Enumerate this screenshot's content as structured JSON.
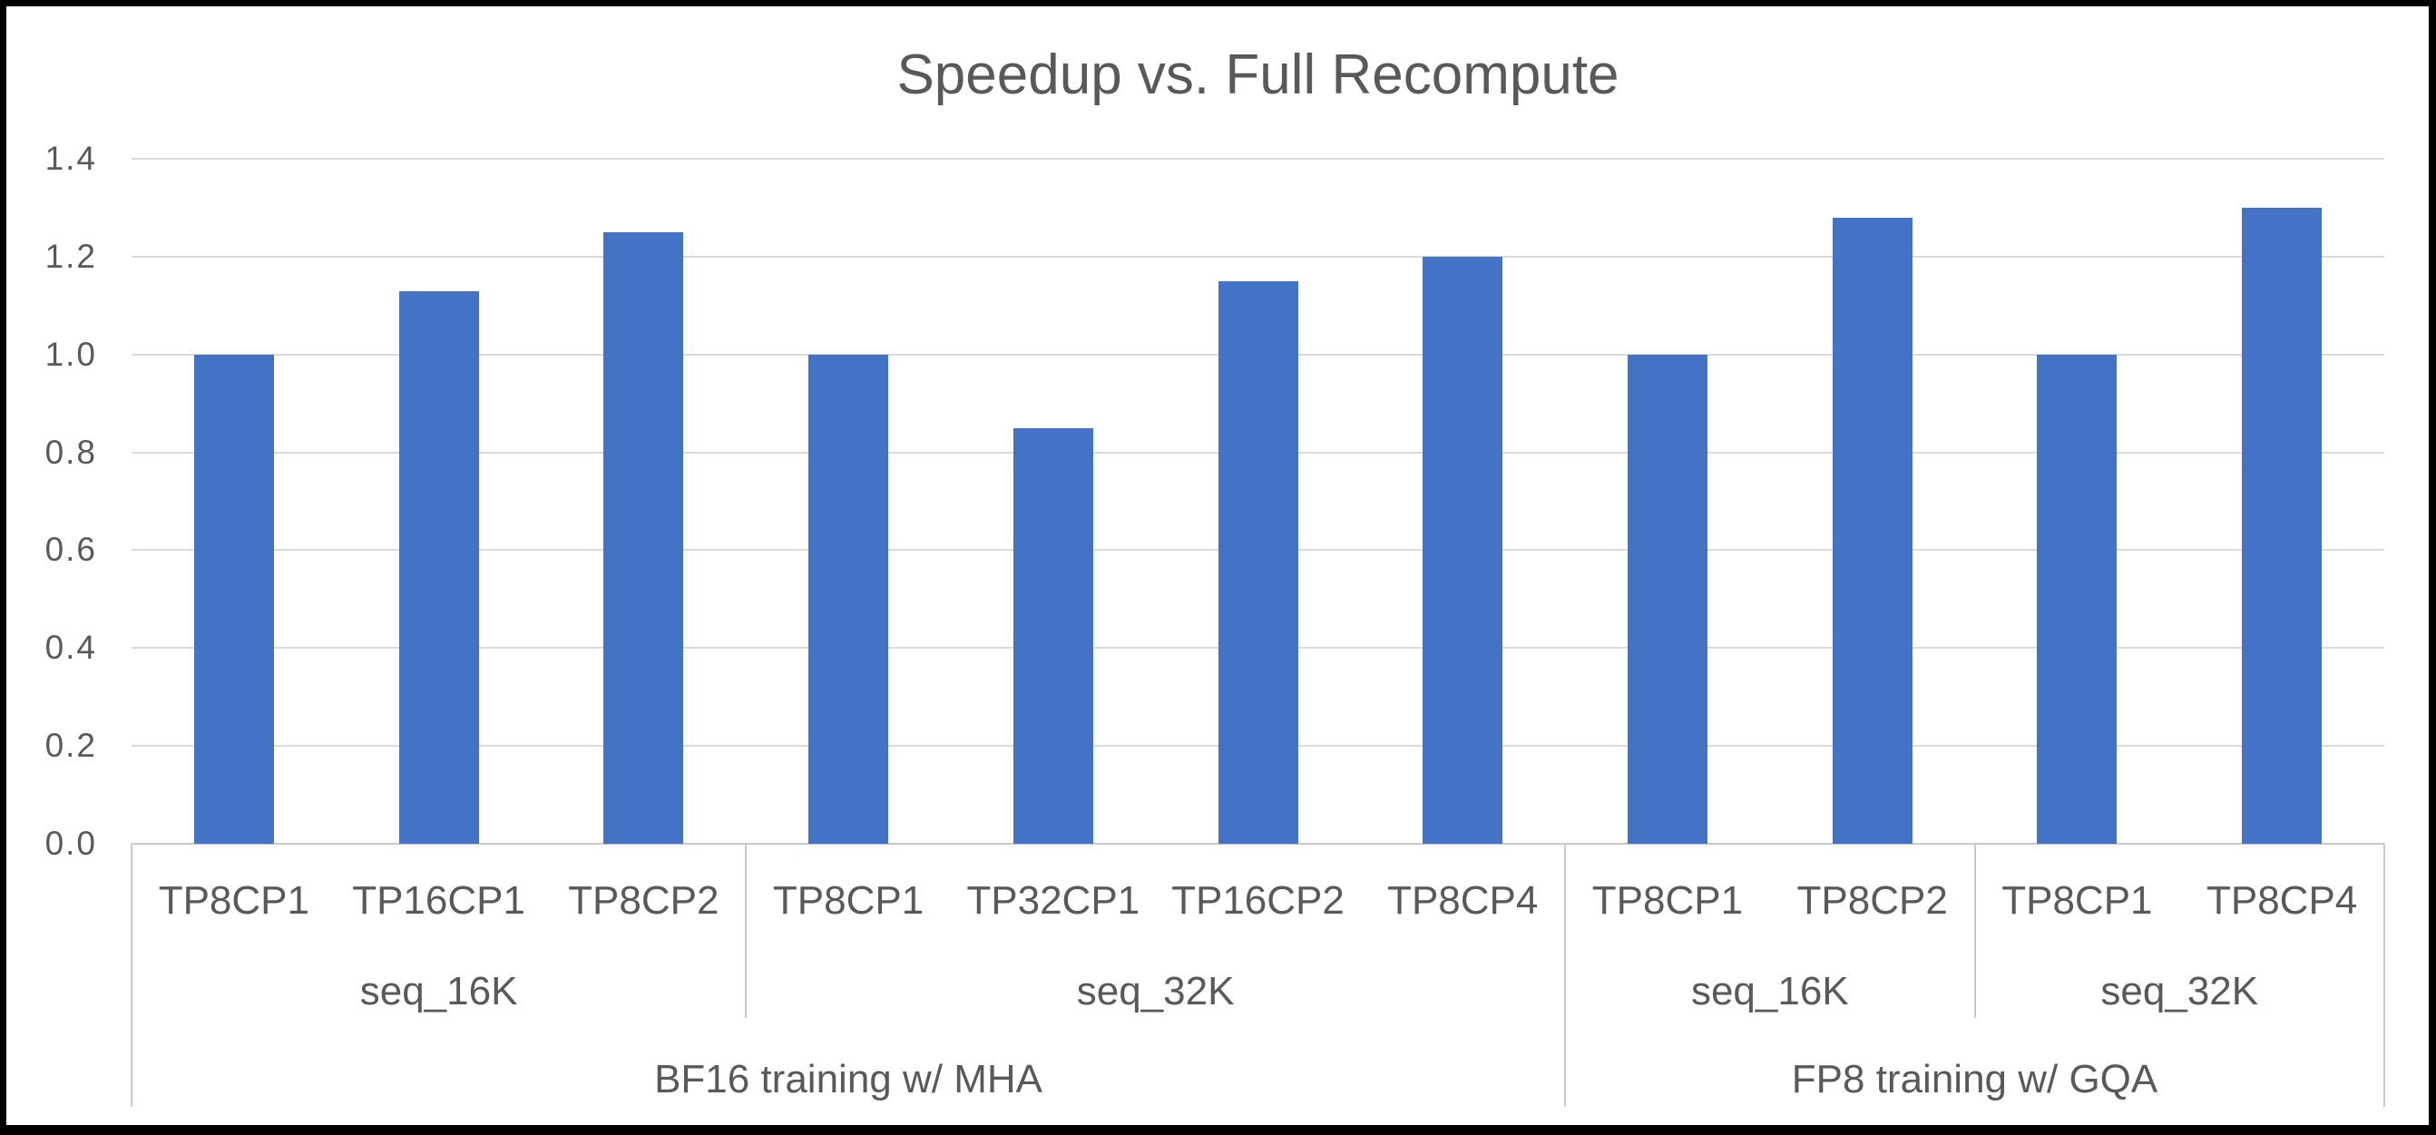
{
  "colors": {
    "bar": "#4472C4",
    "grid": "#D9D9D9",
    "axis": "#C9C9C9",
    "text": "#595959",
    "frame": "#000000"
  },
  "chart_data": {
    "type": "bar",
    "title": "Speedup vs. Full Recompute",
    "xlabel": "",
    "ylabel": "",
    "ylim": [
      0,
      1.4
    ],
    "ytick_step": 0.2,
    "ytick_labels": [
      "0.0",
      "0.2",
      "0.4",
      "0.6",
      "0.8",
      "1.0",
      "1.2",
      "1.4"
    ],
    "grid": true,
    "legend": "none",
    "bar_color": "#4472C4",
    "groups": [
      {
        "label": "BF16 training w/ MHA",
        "seq_groups": [
          {
            "label": "seq_16K",
            "bars": [
              {
                "label": "TP8CP1",
                "value": 1.0
              },
              {
                "label": "TP16CP1",
                "value": 1.13
              },
              {
                "label": "TP8CP2",
                "value": 1.25
              }
            ]
          },
          {
            "label": "seq_32K",
            "bars": [
              {
                "label": "TP8CP1",
                "value": 1.0
              },
              {
                "label": "TP32CP1",
                "value": 0.85
              },
              {
                "label": "TP16CP2",
                "value": 1.15
              },
              {
                "label": "TP8CP4",
                "value": 1.2
              }
            ]
          }
        ]
      },
      {
        "label": "FP8 training w/ GQA",
        "seq_groups": [
          {
            "label": "seq_16K",
            "bars": [
              {
                "label": "TP8CP1",
                "value": 1.0
              },
              {
                "label": "TP8CP2",
                "value": 1.28
              }
            ]
          },
          {
            "label": "seq_32K",
            "bars": [
              {
                "label": "TP8CP1",
                "value": 1.0
              },
              {
                "label": "TP8CP4",
                "value": 1.3
              }
            ]
          }
        ]
      }
    ]
  }
}
